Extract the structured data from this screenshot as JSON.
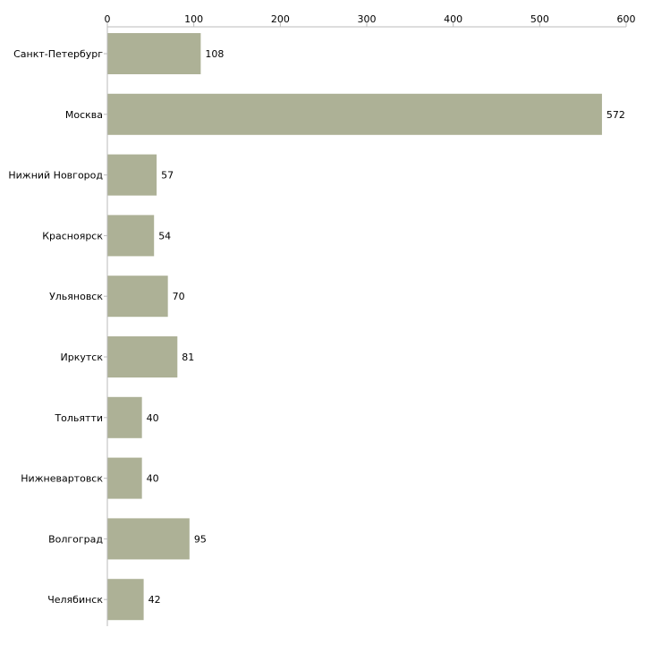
{
  "chart_data": {
    "type": "bar",
    "orientation": "horizontal",
    "title": "",
    "xlabel": "",
    "ylabel": "",
    "xlim": [
      0,
      600
    ],
    "xticks": [
      0,
      100,
      200,
      300,
      400,
      500,
      600
    ],
    "categories": [
      "Санкт-Петербург",
      "Москва",
      "Нижний Новгород",
      "Красноярск",
      "Ульяновск",
      "Иркутск",
      "Тольятти",
      "Нижневартовск",
      "Волгоград",
      "Челябинск"
    ],
    "values": [
      108,
      572,
      57,
      54,
      70,
      81,
      40,
      40,
      95,
      42
    ],
    "grid": false,
    "legend": "none",
    "colors": {
      "bar": "#adb196",
      "axis": "#bbbbbb",
      "text": "#000000"
    }
  }
}
